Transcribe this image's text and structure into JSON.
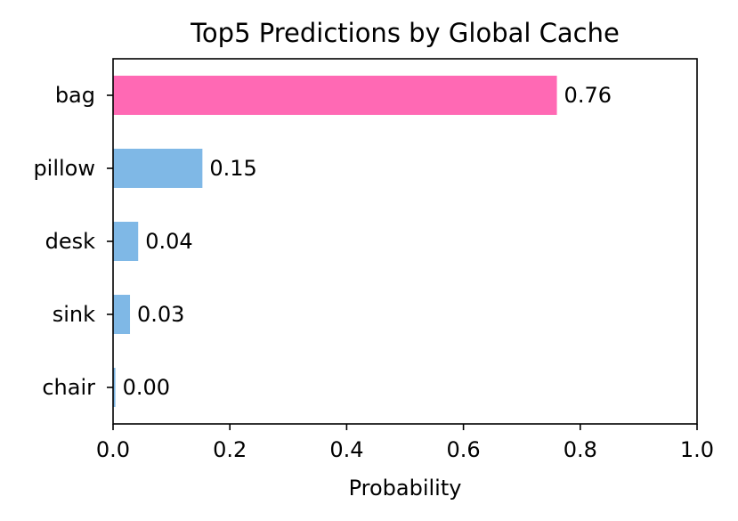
{
  "chart_data": {
    "type": "bar",
    "orientation": "horizontal",
    "title": "Top5 Predictions by Global Cache",
    "xlabel": "Probability",
    "ylabel": "",
    "xlim": [
      0.0,
      1.0
    ],
    "xticks": [
      "0.0",
      "0.2",
      "0.4",
      "0.6",
      "0.8",
      "1.0"
    ],
    "categories": [
      "bag",
      "pillow",
      "desk",
      "sink",
      "chair"
    ],
    "values": [
      0.76,
      0.153,
      0.043,
      0.029,
      0.004
    ],
    "value_labels": [
      "0.76",
      "0.15",
      "0.04",
      "0.03",
      "0.00"
    ],
    "highlight_color": "#ff69b4",
    "bar_color": "#7fb8e6",
    "grid": false,
    "legend": "none"
  }
}
